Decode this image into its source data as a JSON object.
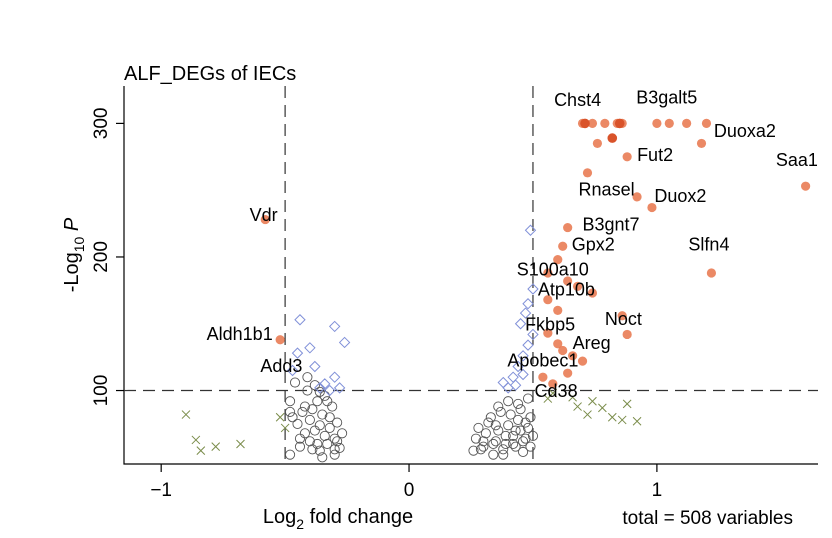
{
  "chart_data": {
    "type": "scatter",
    "title": "ALF_DEGs of IECs",
    "xlabel": {
      "base": "Log",
      "sub": "2",
      "rest": " fold change"
    },
    "ylabel": {
      "base": "-Log",
      "sub": "10",
      "rest": " P"
    },
    "caption": "total = 508 variables",
    "xlim": [
      -1.15,
      1.65
    ],
    "ylim": [
      45,
      328
    ],
    "x_ticks": [
      -1,
      0,
      1
    ],
    "x_tick_labels": [
      "−1",
      "0",
      "1"
    ],
    "y_ticks": [
      100,
      200,
      300
    ],
    "y_tick_labels": [
      "100",
      "200",
      "300"
    ],
    "fc_cutoff": 0.5,
    "p_cutoff": 100,
    "colors": {
      "ns": "#555555",
      "log2fc": "#7a8c4a",
      "p": "#8090d8",
      "both": "#e8744a",
      "both_dark": "#d9532a"
    },
    "groups": {
      "ns": [
        [
          -0.48,
          52
        ],
        [
          -0.44,
          58
        ],
        [
          -0.4,
          62
        ],
        [
          -0.36,
          55
        ],
        [
          -0.33,
          60
        ],
        [
          -0.3,
          52
        ],
        [
          -0.28,
          57
        ],
        [
          -0.42,
          68
        ],
        [
          -0.38,
          70
        ],
        [
          -0.34,
          66
        ],
        [
          -0.3,
          64
        ],
        [
          -0.27,
          68
        ],
        [
          -0.45,
          75
        ],
        [
          -0.4,
          78
        ],
        [
          -0.36,
          74
        ],
        [
          -0.32,
          80
        ],
        [
          -0.29,
          76
        ],
        [
          -0.43,
          84
        ],
        [
          -0.39,
          86
        ],
        [
          -0.35,
          82
        ],
        [
          -0.31,
          88
        ],
        [
          -0.48,
          92
        ],
        [
          -0.37,
          92
        ],
        [
          -0.34,
          96
        ],
        [
          -0.41,
          100
        ],
        [
          -0.36,
          99
        ],
        [
          -0.46,
          106
        ],
        [
          -0.41,
          110
        ],
        [
          -0.37,
          60
        ],
        [
          -0.32,
          72
        ],
        [
          -0.44,
          64
        ],
        [
          -0.39,
          56
        ],
        [
          -0.35,
          50
        ],
        [
          -0.29,
          62
        ],
        [
          -0.47,
          80
        ],
        [
          -0.48,
          84
        ],
        [
          -0.33,
          92
        ],
        [
          -0.3,
          56
        ],
        [
          -0.42,
          88
        ],
        [
          -0.38,
          104
        ],
        [
          0.26,
          55
        ],
        [
          0.3,
          58
        ],
        [
          0.34,
          52
        ],
        [
          0.38,
          56
        ],
        [
          0.42,
          60
        ],
        [
          0.46,
          54
        ],
        [
          0.49,
          58
        ],
        [
          0.27,
          64
        ],
        [
          0.31,
          68
        ],
        [
          0.35,
          62
        ],
        [
          0.39,
          66
        ],
        [
          0.43,
          70
        ],
        [
          0.47,
          64
        ],
        [
          0.28,
          72
        ],
        [
          0.32,
          76
        ],
        [
          0.36,
          70
        ],
        [
          0.4,
          74
        ],
        [
          0.44,
          78
        ],
        [
          0.48,
          72
        ],
        [
          0.33,
          80
        ],
        [
          0.37,
          84
        ],
        [
          0.41,
          82
        ],
        [
          0.45,
          86
        ],
        [
          0.49,
          80
        ],
        [
          0.36,
          88
        ],
        [
          0.4,
          92
        ],
        [
          0.44,
          90
        ],
        [
          0.48,
          94
        ],
        [
          0.34,
          60
        ],
        [
          0.38,
          52
        ],
        [
          0.42,
          66
        ],
        [
          0.46,
          62
        ],
        [
          0.3,
          62
        ],
        [
          0.29,
          56
        ],
        [
          0.35,
          74
        ],
        [
          0.43,
          58
        ],
        [
          0.47,
          76
        ],
        [
          0.39,
          60
        ],
        [
          0.45,
          70
        ],
        [
          0.5,
          66
        ]
      ],
      "log2fc": [
        [
          -0.9,
          82
        ],
        [
          -0.86,
          63
        ],
        [
          -0.78,
          58
        ],
        [
          -0.68,
          60
        ],
        [
          -0.84,
          55
        ],
        [
          -0.5,
          72
        ],
        [
          -0.52,
          80
        ],
        [
          0.56,
          94
        ],
        [
          0.66,
          95
        ],
        [
          0.68,
          88
        ],
        [
          0.72,
          82
        ],
        [
          0.74,
          92
        ],
        [
          0.78,
          87
        ],
        [
          0.82,
          80
        ],
        [
          0.88,
          90
        ],
        [
          0.86,
          78
        ],
        [
          0.92,
          77
        ],
        [
          0.58,
          98
        ]
      ],
      "p": [
        [
          -0.44,
          153
        ],
        [
          -0.4,
          132
        ],
        [
          -0.38,
          118
        ],
        [
          -0.34,
          105
        ],
        [
          -0.3,
          110
        ],
        [
          -0.28,
          102
        ],
        [
          -0.32,
          100
        ],
        [
          -0.26,
          136
        ],
        [
          -0.3,
          148
        ],
        [
          -0.45,
          128
        ],
        [
          -0.36,
          102
        ],
        [
          -0.47,
          115
        ],
        [
          0.38,
          106
        ],
        [
          0.4,
          102
        ],
        [
          0.42,
          110
        ],
        [
          0.44,
          118
        ],
        [
          0.46,
          126
        ],
        [
          0.48,
          134
        ],
        [
          0.45,
          150
        ],
        [
          0.48,
          165
        ],
        [
          0.5,
          176
        ],
        [
          0.49,
          220
        ],
        [
          0.47,
          158
        ],
        [
          0.43,
          104
        ],
        [
          0.46,
          112
        ],
        [
          0.5,
          142
        ]
      ],
      "both": [
        [
          -0.58,
          228
        ],
        [
          -0.52,
          138
        ],
        [
          0.7,
          300
        ],
        [
          0.74,
          300
        ],
        [
          0.79,
          300
        ],
        [
          0.84,
          300
        ],
        [
          0.86,
          300
        ],
        [
          1.0,
          300
        ],
        [
          1.05,
          300
        ],
        [
          1.12,
          300
        ],
        [
          1.2,
          300
        ],
        [
          0.76,
          285
        ],
        [
          0.88,
          275
        ],
        [
          1.18,
          285
        ],
        [
          0.72,
          263
        ],
        [
          0.92,
          245
        ],
        [
          0.98,
          237
        ],
        [
          1.6,
          253
        ],
        [
          0.64,
          222
        ],
        [
          0.62,
          208
        ],
        [
          0.6,
          198
        ],
        [
          0.56,
          188
        ],
        [
          0.64,
          182
        ],
        [
          0.68,
          178
        ],
        [
          0.74,
          173
        ],
        [
          0.56,
          168
        ],
        [
          0.6,
          160
        ],
        [
          0.86,
          156
        ],
        [
          0.88,
          142
        ],
        [
          0.56,
          143
        ],
        [
          0.6,
          135
        ],
        [
          0.62,
          130
        ],
        [
          0.66,
          126
        ],
        [
          0.7,
          122
        ],
        [
          0.64,
          113
        ],
        [
          0.58,
          105
        ],
        [
          0.54,
          110
        ],
        [
          1.22,
          188
        ]
      ],
      "both_dark": [
        [
          0.71,
          300
        ],
        [
          0.82,
          289
        ],
        [
          0.85,
          300
        ]
      ]
    },
    "labels": [
      {
        "text": "Chst4",
        "x": 0.68,
        "y": 313,
        "anchor": "middle"
      },
      {
        "text": "B3galt5",
        "x": 1.04,
        "y": 315,
        "anchor": "middle"
      },
      {
        "text": "Duoxa2",
        "x": 1.23,
        "y": 290,
        "anchor": "start"
      },
      {
        "text": "Saa1",
        "x": 1.48,
        "y": 268,
        "anchor": "start"
      },
      {
        "text": "Fut2",
        "x": 0.92,
        "y": 272,
        "anchor": "start"
      },
      {
        "text": "Rnasel",
        "x": 0.91,
        "y": 246,
        "anchor": "end"
      },
      {
        "text": "Duox2",
        "x": 0.99,
        "y": 241,
        "anchor": "start"
      },
      {
        "text": "B3gnt7",
        "x": 0.93,
        "y": 220,
        "anchor": "end"
      },
      {
        "text": "Gpx2",
        "x": 0.83,
        "y": 205,
        "anchor": "end"
      },
      {
        "text": "Slfn4",
        "x": 1.21,
        "y": 205,
        "anchor": "middle"
      },
      {
        "text": "S100a10",
        "x": 0.58,
        "y": 186,
        "anchor": "middle"
      },
      {
        "text": "Atp10b",
        "x": 0.75,
        "y": 171,
        "anchor": "end"
      },
      {
        "text": "Noct",
        "x": 0.79,
        "y": 149,
        "anchor": "start"
      },
      {
        "text": "Fkbp5",
        "x": 0.67,
        "y": 145,
        "anchor": "end"
      },
      {
        "text": "Areg",
        "x": 0.66,
        "y": 131,
        "anchor": "start"
      },
      {
        "text": "Apobec1",
        "x": 0.54,
        "y": 118,
        "anchor": "middle"
      },
      {
        "text": "Cd38",
        "x": 0.68,
        "y": 95,
        "anchor": "end"
      },
      {
        "text": "Vdr",
        "x": -0.53,
        "y": 227,
        "anchor": "end"
      },
      {
        "text": "Aldh1b1",
        "x": -0.55,
        "y": 138,
        "anchor": "end"
      },
      {
        "text": "Add3",
        "x": -0.43,
        "y": 114,
        "anchor": "end"
      }
    ]
  }
}
